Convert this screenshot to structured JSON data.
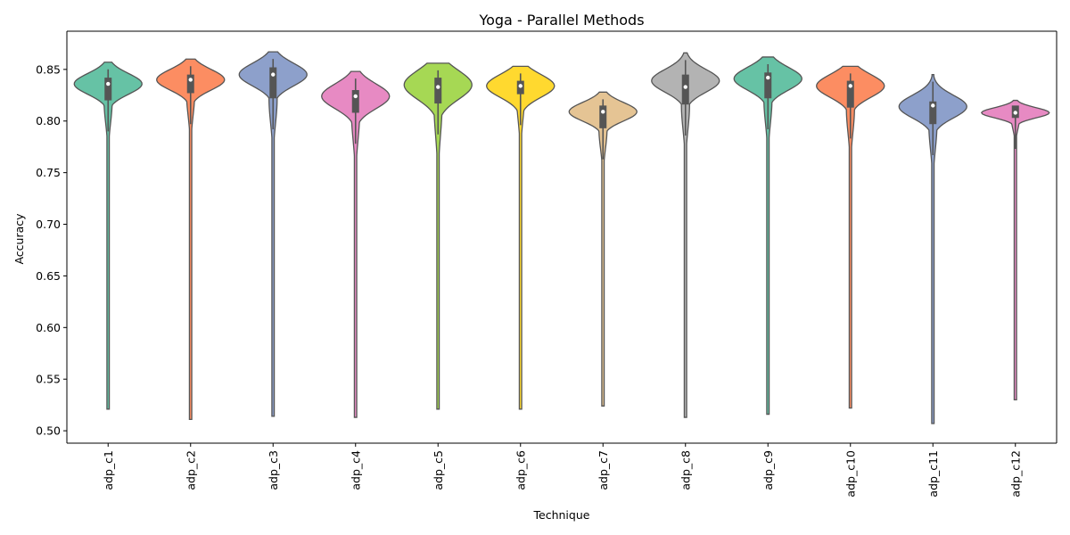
{
  "chart_data": {
    "type": "violin",
    "title": "Yoga - Parallel Methods",
    "xlabel": "Technique",
    "ylabel": "Accuracy",
    "ylim": [
      0.488,
      0.887
    ],
    "yticks": [
      0.5,
      0.55,
      0.6,
      0.65,
      0.7,
      0.75,
      0.8,
      0.85
    ],
    "yticklabels": [
      "0.50",
      "0.55",
      "0.60",
      "0.65",
      "0.70",
      "0.75",
      "0.80",
      "0.85"
    ],
    "grid": false,
    "categories": [
      "adp_c1",
      "adp_c2",
      "adp_c3",
      "adp_c4",
      "adp_c5",
      "adp_c6",
      "adp_c7",
      "adp_c8",
      "adp_c9",
      "adp_c10",
      "adp_c11",
      "adp_c12"
    ],
    "series": [
      {
        "category": "adp_c1",
        "color": "#66c2a5",
        "min": 0.521,
        "q1": 0.82,
        "median": 0.836,
        "q3": 0.842,
        "max": 0.857,
        "mode": 0.836,
        "spread": 0.01
      },
      {
        "category": "adp_c2",
        "color": "#fc8d62",
        "min": 0.511,
        "q1": 0.827,
        "median": 0.84,
        "q3": 0.845,
        "max": 0.86,
        "mode": 0.84,
        "spread": 0.01
      },
      {
        "category": "adp_c3",
        "color": "#8da0cb",
        "min": 0.514,
        "q1": 0.822,
        "median": 0.845,
        "q3": 0.852,
        "max": 0.867,
        "mode": 0.845,
        "spread": 0.011
      },
      {
        "category": "adp_c4",
        "color": "#e78ac3",
        "min": 0.513,
        "q1": 0.808,
        "median": 0.824,
        "q3": 0.83,
        "max": 0.848,
        "mode": 0.824,
        "spread": 0.012
      },
      {
        "category": "adp_c5",
        "color": "#a6d854",
        "min": 0.521,
        "q1": 0.817,
        "median": 0.833,
        "q3": 0.842,
        "max": 0.856,
        "mode": 0.835,
        "spread": 0.014
      },
      {
        "category": "adp_c6",
        "color": "#ffd92f",
        "min": 0.521,
        "q1": 0.826,
        "median": 0.834,
        "q3": 0.839,
        "max": 0.853,
        "mode": 0.834,
        "spread": 0.011
      },
      {
        "category": "adp_c7",
        "color": "#e5c494",
        "min": 0.524,
        "q1": 0.793,
        "median": 0.809,
        "q3": 0.815,
        "max": 0.828,
        "mode": 0.809,
        "spread": 0.009
      },
      {
        "category": "adp_c8",
        "color": "#b3b3b3",
        "min": 0.513,
        "q1": 0.816,
        "median": 0.833,
        "q3": 0.845,
        "max": 0.866,
        "mode": 0.839,
        "spread": 0.011
      },
      {
        "category": "adp_c9",
        "color": "#66c2a5",
        "min": 0.516,
        "q1": 0.822,
        "median": 0.842,
        "q3": 0.847,
        "max": 0.862,
        "mode": 0.841,
        "spread": 0.011
      },
      {
        "category": "adp_c10",
        "color": "#fc8d62",
        "min": 0.522,
        "q1": 0.813,
        "median": 0.834,
        "q3": 0.839,
        "max": 0.853,
        "mode": 0.834,
        "spread": 0.011
      },
      {
        "category": "adp_c11",
        "color": "#8da0cb",
        "min": 0.507,
        "q1": 0.797,
        "median": 0.815,
        "q3": 0.819,
        "max": 0.845,
        "mode": 0.814,
        "spread": 0.011
      },
      {
        "category": "adp_c12",
        "color": "#e78ac3",
        "min": 0.53,
        "q1": 0.803,
        "median": 0.808,
        "q3": 0.815,
        "max": 0.82,
        "mode": 0.808,
        "spread": 0.005
      }
    ]
  }
}
